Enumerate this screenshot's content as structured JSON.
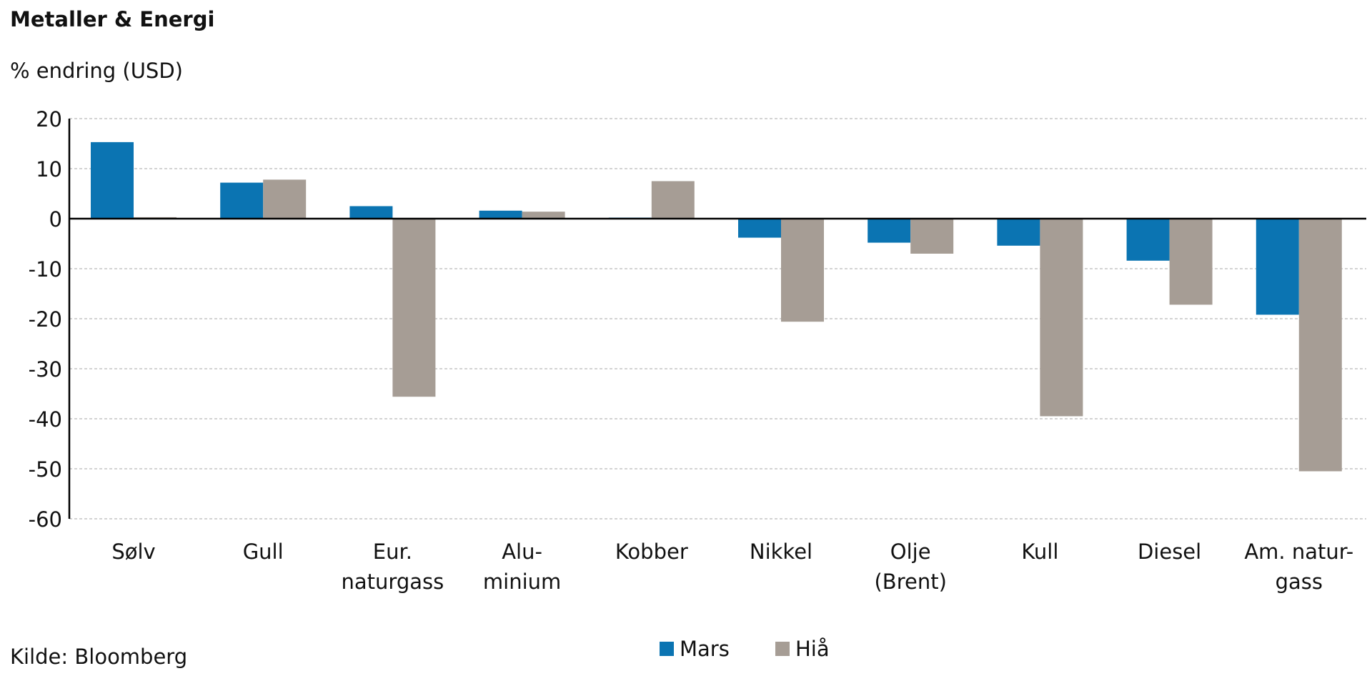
{
  "chart_data": {
    "type": "bar",
    "title": "Metaller & Energi",
    "ylabel": "% endring (USD)",
    "source": "Kilde: Bloomberg",
    "categories": [
      [
        "Sølv"
      ],
      [
        "Gull"
      ],
      [
        "Eur.",
        "naturgass"
      ],
      [
        "Alu-",
        "minium"
      ],
      [
        "Kobber"
      ],
      [
        "Nikkel"
      ],
      [
        "Olje",
        "(Brent)"
      ],
      [
        "Kull"
      ],
      [
        "Diesel"
      ],
      [
        "Am. natur-",
        "gass"
      ]
    ],
    "series": [
      {
        "name": "Mars",
        "color": "#0B74B2",
        "values": [
          15.3,
          7.2,
          2.5,
          1.6,
          0.2,
          -3.8,
          -4.8,
          -5.4,
          -8.4,
          -19.2
        ]
      },
      {
        "name": "Hiå",
        "color": "#A69D95",
        "values": [
          0.3,
          7.8,
          -35.6,
          1.4,
          7.5,
          -20.6,
          -7.0,
          -39.5,
          -17.2,
          -50.5
        ]
      }
    ],
    "ylim": [
      -60,
      20
    ],
    "yticks": [
      20,
      10,
      0,
      -10,
      -20,
      -30,
      -40,
      -50,
      -60
    ],
    "grid": true,
    "legend": "bottom-center"
  }
}
